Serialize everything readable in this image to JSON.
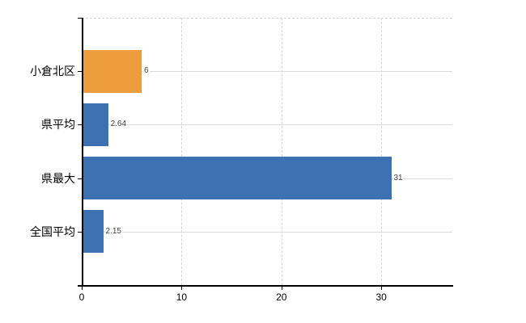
{
  "chart_data": {
    "type": "bar",
    "orientation": "horizontal",
    "title": "",
    "categories": [
      "小倉北区",
      "県平均",
      "県最大",
      "全国平均"
    ],
    "values": [
      6,
      2.64,
      31,
      2.15
    ],
    "value_labels": [
      "6",
      "2.64",
      "31",
      "2.15"
    ],
    "bar_colors": [
      "#EE9D3E",
      "#3D71B2",
      "#3D71B2",
      "#3D71B2"
    ],
    "x_axis": {
      "ticks": [
        0,
        10,
        20,
        30
      ],
      "tick_labels": [
        "0",
        "10",
        "20",
        "30"
      ],
      "range": [
        0,
        37.2
      ],
      "grid": "dashed-vertical"
    },
    "y_axis": {
      "grid": "solid-horizontal-at-category-centers"
    },
    "legend": "none",
    "colors": {
      "highlight_bar": "#EE9D3E",
      "default_bar": "#3D71B2",
      "grid": "#d9d9d9",
      "axis": "#000000",
      "label_text": "#000000",
      "value_text": "#3d3d3d",
      "background": "#ffffff"
    }
  }
}
